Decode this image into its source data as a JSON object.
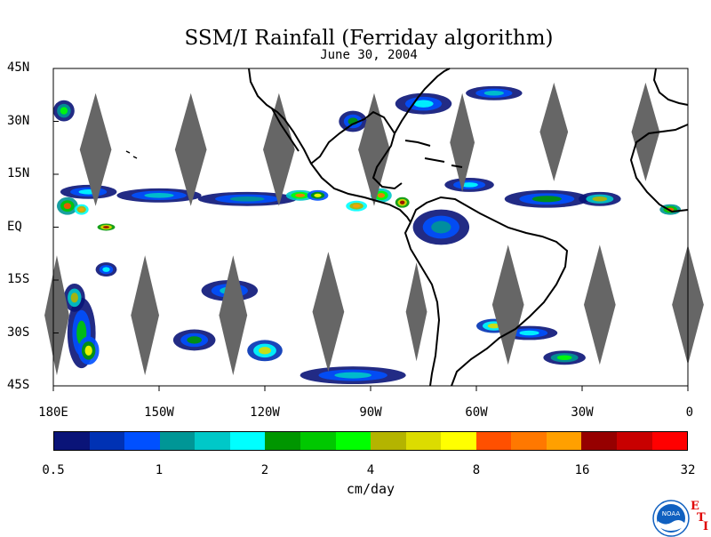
{
  "title": "SSM/I Rainfall (Ferriday algorithm)",
  "subtitle": "June 30, 2004",
  "map": {
    "projection": "equirectangular",
    "lon_range": [
      -180,
      0
    ],
    "lat_range": [
      -45,
      45
    ],
    "lat_ticks": [
      {
        "lat": 45,
        "label": "45N"
      },
      {
        "lat": 30,
        "label": "30N"
      },
      {
        "lat": 15,
        "label": "15N"
      },
      {
        "lat": 0,
        "label": "EQ"
      },
      {
        "lat": -15,
        "label": "15S"
      },
      {
        "lat": -30,
        "label": "30S"
      },
      {
        "lat": -45,
        "label": "45S"
      }
    ],
    "lon_ticks": [
      {
        "lon": -180,
        "label": "180E"
      },
      {
        "lon": -150,
        "label": "150W"
      },
      {
        "lon": -120,
        "label": "120W"
      },
      {
        "lon": -90,
        "label": "90W"
      },
      {
        "lon": -60,
        "label": "60W"
      },
      {
        "lon": -30,
        "label": "30W"
      },
      {
        "lon": 0,
        "label": "0"
      }
    ],
    "swath_gap_color": "#666666",
    "coast_color": "#000000",
    "swath_gaps": [
      {
        "lon": -168,
        "lat": 22,
        "dlon": 4.5,
        "dlat": 16
      },
      {
        "lon": -141,
        "lat": 22,
        "dlon": 4.5,
        "dlat": 16
      },
      {
        "lon": -116,
        "lat": 22,
        "dlon": 4.5,
        "dlat": 16
      },
      {
        "lon": -89,
        "lat": 22,
        "dlon": 4.5,
        "dlat": 16
      },
      {
        "lon": -64,
        "lat": 24,
        "dlon": 3.5,
        "dlat": 14
      },
      {
        "lon": -38,
        "lat": 27,
        "dlon": 4,
        "dlat": 14
      },
      {
        "lon": -12,
        "lat": 27,
        "dlon": 4,
        "dlat": 14
      },
      {
        "lon": -179,
        "lat": -25,
        "dlon": 3.5,
        "dlat": 17
      },
      {
        "lon": -154,
        "lat": -25,
        "dlon": 4,
        "dlat": 17
      },
      {
        "lon": -129,
        "lat": -25,
        "dlon": 4,
        "dlat": 17
      },
      {
        "lon": -102,
        "lat": -24,
        "dlon": 4.5,
        "dlat": 17
      },
      {
        "lon": -77,
        "lat": -24,
        "dlon": 3,
        "dlat": 14
      },
      {
        "lon": -51,
        "lat": -22,
        "dlon": 4.5,
        "dlat": 17
      },
      {
        "lon": -25,
        "lat": -22,
        "dlon": 4.5,
        "dlat": 17
      },
      {
        "lon": 0,
        "lat": -22,
        "dlon": 4.5,
        "dlat": 17
      }
    ],
    "rain_patches": [
      {
        "lon": -177,
        "lat": 33,
        "rx": 3,
        "ry": 3,
        "level": 8
      },
      {
        "lon": -176,
        "lat": 6,
        "rx": 3,
        "ry": 2.5,
        "level": 12
      },
      {
        "lon": -172,
        "lat": 5,
        "rx": 2,
        "ry": 1.5,
        "level": 14
      },
      {
        "lon": -165,
        "lat": 0,
        "rx": 2.5,
        "ry": 1,
        "level": 15
      },
      {
        "lon": -170,
        "lat": 10,
        "rx": 8,
        "ry": 2,
        "level": 5
      },
      {
        "lon": -150,
        "lat": 9,
        "rx": 12,
        "ry": 2,
        "level": 4
      },
      {
        "lon": -125,
        "lat": 8,
        "rx": 14,
        "ry": 2,
        "level": 3
      },
      {
        "lon": -110,
        "lat": 9,
        "rx": 4,
        "ry": 1.5,
        "level": 13
      },
      {
        "lon": -105,
        "lat": 9,
        "rx": 3,
        "ry": 1.5,
        "level": 11
      },
      {
        "lon": -94,
        "lat": 6,
        "rx": 3,
        "ry": 1.5,
        "level": 14
      },
      {
        "lon": -87,
        "lat": 9,
        "rx": 3,
        "ry": 2,
        "level": 13
      },
      {
        "lon": -81,
        "lat": 7,
        "rx": 2,
        "ry": 1.5,
        "level": 15
      },
      {
        "lon": -95,
        "lat": 30,
        "rx": 4,
        "ry": 3,
        "level": 6
      },
      {
        "lon": -75,
        "lat": 35,
        "rx": 8,
        "ry": 3,
        "level": 5
      },
      {
        "lon": -55,
        "lat": 38,
        "rx": 8,
        "ry": 2,
        "level": 4
      },
      {
        "lon": -62,
        "lat": 12,
        "rx": 7,
        "ry": 2,
        "level": 5
      },
      {
        "lon": -40,
        "lat": 8,
        "rx": 12,
        "ry": 2.5,
        "level": 6
      },
      {
        "lon": -25,
        "lat": 8,
        "rx": 6,
        "ry": 2,
        "level": 9
      },
      {
        "lon": -5,
        "lat": 5,
        "rx": 3,
        "ry": 1.5,
        "level": 12
      },
      {
        "lon": -70,
        "lat": 0,
        "rx": 8,
        "ry": 5,
        "level": 3
      },
      {
        "lon": -172,
        "lat": -30,
        "rx": 4,
        "ry": 10,
        "level": 7
      },
      {
        "lon": -174,
        "lat": -20,
        "rx": 3,
        "ry": 4,
        "level": 9
      },
      {
        "lon": -170,
        "lat": -35,
        "rx": 3,
        "ry": 4,
        "level": 11
      },
      {
        "lon": -165,
        "lat": -12,
        "rx": 3,
        "ry": 2,
        "level": 5
      },
      {
        "lon": -140,
        "lat": -32,
        "rx": 6,
        "ry": 3,
        "level": 6
      },
      {
        "lon": -120,
        "lat": -35,
        "rx": 5,
        "ry": 3,
        "level": 10
      },
      {
        "lon": -130,
        "lat": -18,
        "rx": 8,
        "ry": 3,
        "level": 4
      },
      {
        "lon": -95,
        "lat": -42,
        "rx": 15,
        "ry": 2.5,
        "level": 4
      },
      {
        "lon": -45,
        "lat": -30,
        "rx": 8,
        "ry": 2,
        "level": 5
      },
      {
        "lon": -35,
        "lat": -37,
        "rx": 6,
        "ry": 2,
        "level": 8
      },
      {
        "lon": -55,
        "lat": -28,
        "rx": 5,
        "ry": 2,
        "level": 10
      }
    ]
  },
  "colorbar": {
    "colors": [
      "#0a1478",
      "#0032b4",
      "#0050ff",
      "#009696",
      "#00c8c8",
      "#00ffff",
      "#009600",
      "#00c800",
      "#00ff00",
      "#b4b400",
      "#dcdc00",
      "#ffff00",
      "#ff5000",
      "#ff7800",
      "#ffa000",
      "#960000",
      "#c80000",
      "#ff0000"
    ],
    "ticks": [
      {
        "value": "0.5",
        "pos": 0
      },
      {
        "value": "1",
        "pos": 3
      },
      {
        "value": "2",
        "pos": 6
      },
      {
        "value": "4",
        "pos": 9
      },
      {
        "value": "8",
        "pos": 12
      },
      {
        "value": "16",
        "pos": 15
      },
      {
        "value": "32",
        "pos": 18
      }
    ],
    "units": "cm/day"
  },
  "logo": {
    "text": "NOAA",
    "side_letters": [
      "E",
      "T",
      "I"
    ]
  }
}
